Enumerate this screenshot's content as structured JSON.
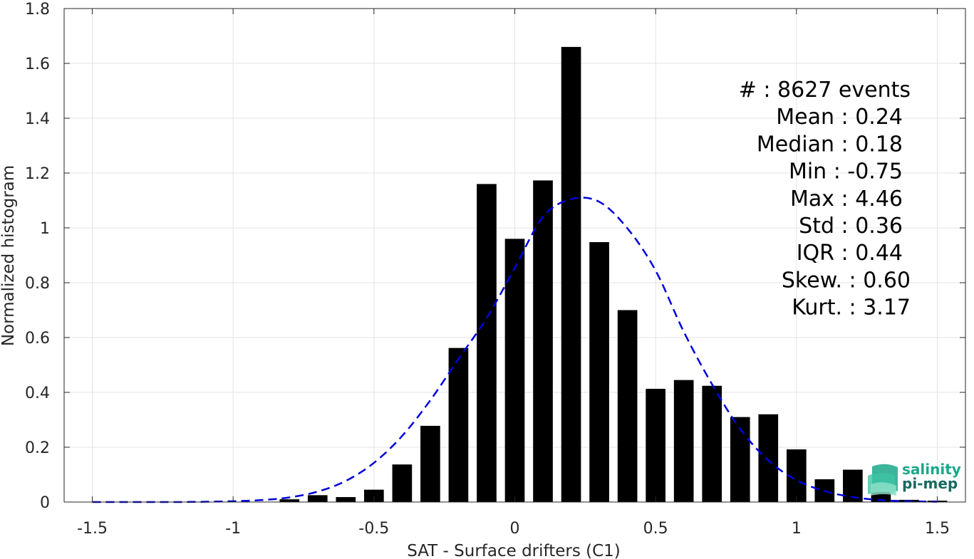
{
  "chart_data": {
    "type": "bar",
    "xlabel": "SAT - Surface drifters (C1)",
    "ylabel": "Normalized histogram",
    "xlim": [
      -1.6,
      1.6
    ],
    "ylim": [
      0,
      1.8
    ],
    "xticks": [
      -1.5,
      -1,
      -0.5,
      0,
      0.5,
      1,
      1.5
    ],
    "xtick_labels": [
      "-1.5",
      "-1",
      "-0.5",
      "0",
      "0.5",
      "1",
      "1.5"
    ],
    "yticks": [
      0,
      0.2,
      0.4,
      0.6,
      0.8,
      1,
      1.2,
      1.4,
      1.6,
      1.8
    ],
    "ytick_labels": [
      "0",
      "0.2",
      "0.4",
      "0.6",
      "0.8",
      "1",
      "1.2",
      "1.4",
      "1.6",
      "1.8"
    ],
    "grid": true,
    "bar_color": "#000000",
    "bar_width": 0.07,
    "bars": {
      "x": [
        -0.8,
        -0.7,
        -0.6,
        -0.5,
        -0.4,
        -0.3,
        -0.2,
        -0.1,
        0.0,
        0.1,
        0.2,
        0.3,
        0.4,
        0.5,
        0.6,
        0.7,
        0.8,
        0.9,
        1.0,
        1.1,
        1.2,
        1.3,
        1.4,
        1.5
      ],
      "values": [
        0.01,
        0.025,
        0.018,
        0.045,
        0.137,
        0.278,
        0.562,
        1.16,
        0.96,
        1.173,
        1.66,
        0.948,
        0.7,
        0.413,
        0.445,
        0.424,
        0.31,
        0.32,
        0.192,
        0.083,
        0.118,
        0.038,
        0.008,
        0.005
      ]
    },
    "fit_curve": {
      "color": "#0000dd",
      "style": "dashed",
      "x": [
        -1.5,
        -1.4,
        -1.3,
        -1.2,
        -1.1,
        -1.0,
        -0.9,
        -0.8,
        -0.7,
        -0.6,
        -0.5,
        -0.4,
        -0.3,
        -0.2,
        -0.1,
        0.0,
        0.1,
        0.2,
        0.3,
        0.4,
        0.5,
        0.6,
        0.7,
        0.8,
        0.9,
        1.0,
        1.1,
        1.2,
        1.3,
        1.4,
        1.5
      ],
      "y": [
        0.0,
        0.0,
        0.0,
        0.0,
        0.001,
        0.003,
        0.007,
        0.017,
        0.038,
        0.077,
        0.143,
        0.241,
        0.371,
        0.522,
        0.671,
        0.854,
        1.04,
        1.105,
        1.095,
        0.998,
        0.844,
        0.621,
        0.43,
        0.267,
        0.152,
        0.08,
        0.04,
        0.018,
        0.007,
        0.003,
        0.001
      ]
    }
  },
  "stats": {
    "lines": [
      {
        "label": "#",
        "sep": " : ",
        "value": "8627 events"
      },
      {
        "label": "Mean",
        "sep": " : ",
        "value": "0.24"
      },
      {
        "label": "Median",
        "sep": " : ",
        "value": "0.18"
      },
      {
        "label": "Min",
        "sep": " : ",
        "value": "-0.75"
      },
      {
        "label": "Max",
        "sep": " : ",
        "value": "4.46"
      },
      {
        "label": "Std",
        "sep": " : ",
        "value": "0.36"
      },
      {
        "label": "IQR",
        "sep": " : ",
        "value": "0.44"
      },
      {
        "label": "Skew.",
        "sep": " : ",
        "value": "0.60"
      },
      {
        "label": "Kurt.",
        "sep": " : ",
        "value": "3.17"
      }
    ]
  },
  "logo": {
    "line1": "salinity",
    "line2": "pi-mep",
    "color_main": "#1aa88a",
    "color_dark": "#156a5f"
  }
}
